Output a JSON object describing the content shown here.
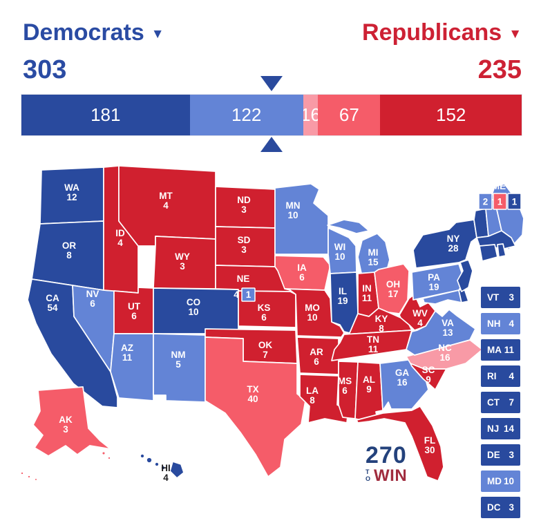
{
  "header": {
    "democrats_label": "Democrats",
    "republicans_label": "Republicans",
    "democrats_total": "303",
    "republicans_total": "235",
    "caret": "▼"
  },
  "colors": {
    "safe_dem": "#294a9e",
    "likely_dem": "#6384d6",
    "lean_rep": "#f89aa6",
    "likely_rep": "#f55c69",
    "safe_rep": "#d0202f",
    "dem_text": "#2a4ba3",
    "rep_text": "#cd2134",
    "marker": "#2a4a9d",
    "logo_blue": "#24427c",
    "logo_red": "#a02c3e",
    "hi_label_text": "#1d1d1f"
  },
  "bar": {
    "total_ev": 538,
    "segments": [
      {
        "label": "181",
        "value": 181,
        "rating": "safe_dem"
      },
      {
        "label": "122",
        "value": 122,
        "rating": "likely_dem"
      },
      {
        "label": "16",
        "value": 16,
        "rating": "lean_rep"
      },
      {
        "label": "67",
        "value": 67,
        "rating": "likely_rep"
      },
      {
        "label": "152",
        "value": 152,
        "rating": "safe_rep"
      }
    ]
  },
  "map": {
    "states": [
      {
        "abbr": "WA",
        "ev": "12",
        "rating": "safe_dem"
      },
      {
        "abbr": "OR",
        "ev": "8",
        "rating": "safe_dem"
      },
      {
        "abbr": "CA",
        "ev": "54",
        "rating": "safe_dem"
      },
      {
        "abbr": "NV",
        "ev": "6",
        "rating": "likely_dem"
      },
      {
        "abbr": "ID",
        "ev": "4",
        "rating": "safe_rep"
      },
      {
        "abbr": "MT",
        "ev": "4",
        "rating": "safe_rep"
      },
      {
        "abbr": "WY",
        "ev": "3",
        "rating": "safe_rep"
      },
      {
        "abbr": "UT",
        "ev": "6",
        "rating": "safe_rep"
      },
      {
        "abbr": "CO",
        "ev": "10",
        "rating": "safe_dem"
      },
      {
        "abbr": "AZ",
        "ev": "11",
        "rating": "likely_dem"
      },
      {
        "abbr": "NM",
        "ev": "5",
        "rating": "likely_dem"
      },
      {
        "abbr": "ND",
        "ev": "3",
        "rating": "safe_rep"
      },
      {
        "abbr": "SD",
        "ev": "3",
        "rating": "safe_rep"
      },
      {
        "abbr": "NE",
        "ev": "4",
        "rating": "safe_rep"
      },
      {
        "abbr": "KS",
        "ev": "6",
        "rating": "safe_rep"
      },
      {
        "abbr": "OK",
        "ev": "7",
        "rating": "safe_rep"
      },
      {
        "abbr": "TX",
        "ev": "40",
        "rating": "likely_rep"
      },
      {
        "abbr": "MN",
        "ev": "10",
        "rating": "likely_dem"
      },
      {
        "abbr": "IA",
        "ev": "6",
        "rating": "likely_rep"
      },
      {
        "abbr": "MO",
        "ev": "10",
        "rating": "safe_rep"
      },
      {
        "abbr": "AR",
        "ev": "6",
        "rating": "safe_rep"
      },
      {
        "abbr": "LA",
        "ev": "8",
        "rating": "safe_rep"
      },
      {
        "abbr": "WI",
        "ev": "10",
        "rating": "likely_dem"
      },
      {
        "abbr": "IL",
        "ev": "19",
        "rating": "safe_dem"
      },
      {
        "abbr": "MI",
        "ev": "15",
        "rating": "likely_dem"
      },
      {
        "abbr": "IN",
        "ev": "11",
        "rating": "safe_rep"
      },
      {
        "abbr": "OH",
        "ev": "17",
        "rating": "likely_rep"
      },
      {
        "abbr": "KY",
        "ev": "8",
        "rating": "safe_rep"
      },
      {
        "abbr": "TN",
        "ev": "11",
        "rating": "safe_rep"
      },
      {
        "abbr": "MS",
        "ev": "6",
        "rating": "safe_rep"
      },
      {
        "abbr": "AL",
        "ev": "9",
        "rating": "safe_rep"
      },
      {
        "abbr": "GA",
        "ev": "16",
        "rating": "likely_dem"
      },
      {
        "abbr": "FL",
        "ev": "30",
        "rating": "safe_rep"
      },
      {
        "abbr": "SC",
        "ev": "9",
        "rating": "safe_rep"
      },
      {
        "abbr": "NC",
        "ev": "16",
        "rating": "lean_rep"
      },
      {
        "abbr": "VA",
        "ev": "13",
        "rating": "likely_dem"
      },
      {
        "abbr": "WV",
        "ev": "4",
        "rating": "safe_rep"
      },
      {
        "abbr": "MD",
        "ev": "10",
        "rating": "likely_dem"
      },
      {
        "abbr": "DE",
        "ev": "3",
        "rating": "safe_dem"
      },
      {
        "abbr": "NJ",
        "ev": "14",
        "rating": "safe_dem"
      },
      {
        "abbr": "PA",
        "ev": "19",
        "rating": "likely_dem"
      },
      {
        "abbr": "NY",
        "ev": "28",
        "rating": "safe_dem"
      },
      {
        "abbr": "VT",
        "ev": "3",
        "rating": "safe_dem"
      },
      {
        "abbr": "NH",
        "ev": "4",
        "rating": "likely_dem"
      },
      {
        "abbr": "MA",
        "ev": "11",
        "rating": "safe_dem"
      },
      {
        "abbr": "CT",
        "ev": "7",
        "rating": "safe_dem"
      },
      {
        "abbr": "RI",
        "ev": "4",
        "rating": "safe_dem"
      },
      {
        "abbr": "ME",
        "ev": "2",
        "rating": "likely_dem"
      },
      {
        "abbr": "AK",
        "ev": "3",
        "rating": "likely_rep"
      },
      {
        "abbr": "HI",
        "ev": "4",
        "rating": "safe_dem"
      }
    ],
    "districts": {
      "me_label": "ME",
      "ne2": {
        "label": "1",
        "rating": "likely_dem"
      },
      "me": [
        {
          "label": "2",
          "rating": "likely_dem"
        },
        {
          "label": "1",
          "rating": "likely_rep"
        },
        {
          "label": "1",
          "rating": "safe_dem"
        }
      ]
    }
  },
  "small_states": [
    {
      "abbr": "VT",
      "ev": "3",
      "rating": "safe_dem"
    },
    {
      "abbr": "NH",
      "ev": "4",
      "rating": "likely_dem"
    },
    {
      "abbr": "MA",
      "ev": "11",
      "rating": "safe_dem"
    },
    {
      "abbr": "RI",
      "ev": "4",
      "rating": "safe_dem"
    },
    {
      "abbr": "CT",
      "ev": "7",
      "rating": "safe_dem"
    },
    {
      "abbr": "NJ",
      "ev": "14",
      "rating": "safe_dem"
    },
    {
      "abbr": "DE",
      "ev": "3",
      "rating": "safe_dem"
    },
    {
      "abbr": "MD",
      "ev": "10",
      "rating": "likely_dem"
    },
    {
      "abbr": "DC",
      "ev": "3",
      "rating": "safe_dem"
    }
  ],
  "logo": {
    "number": "270",
    "to": "TO",
    "win": "WIN"
  }
}
